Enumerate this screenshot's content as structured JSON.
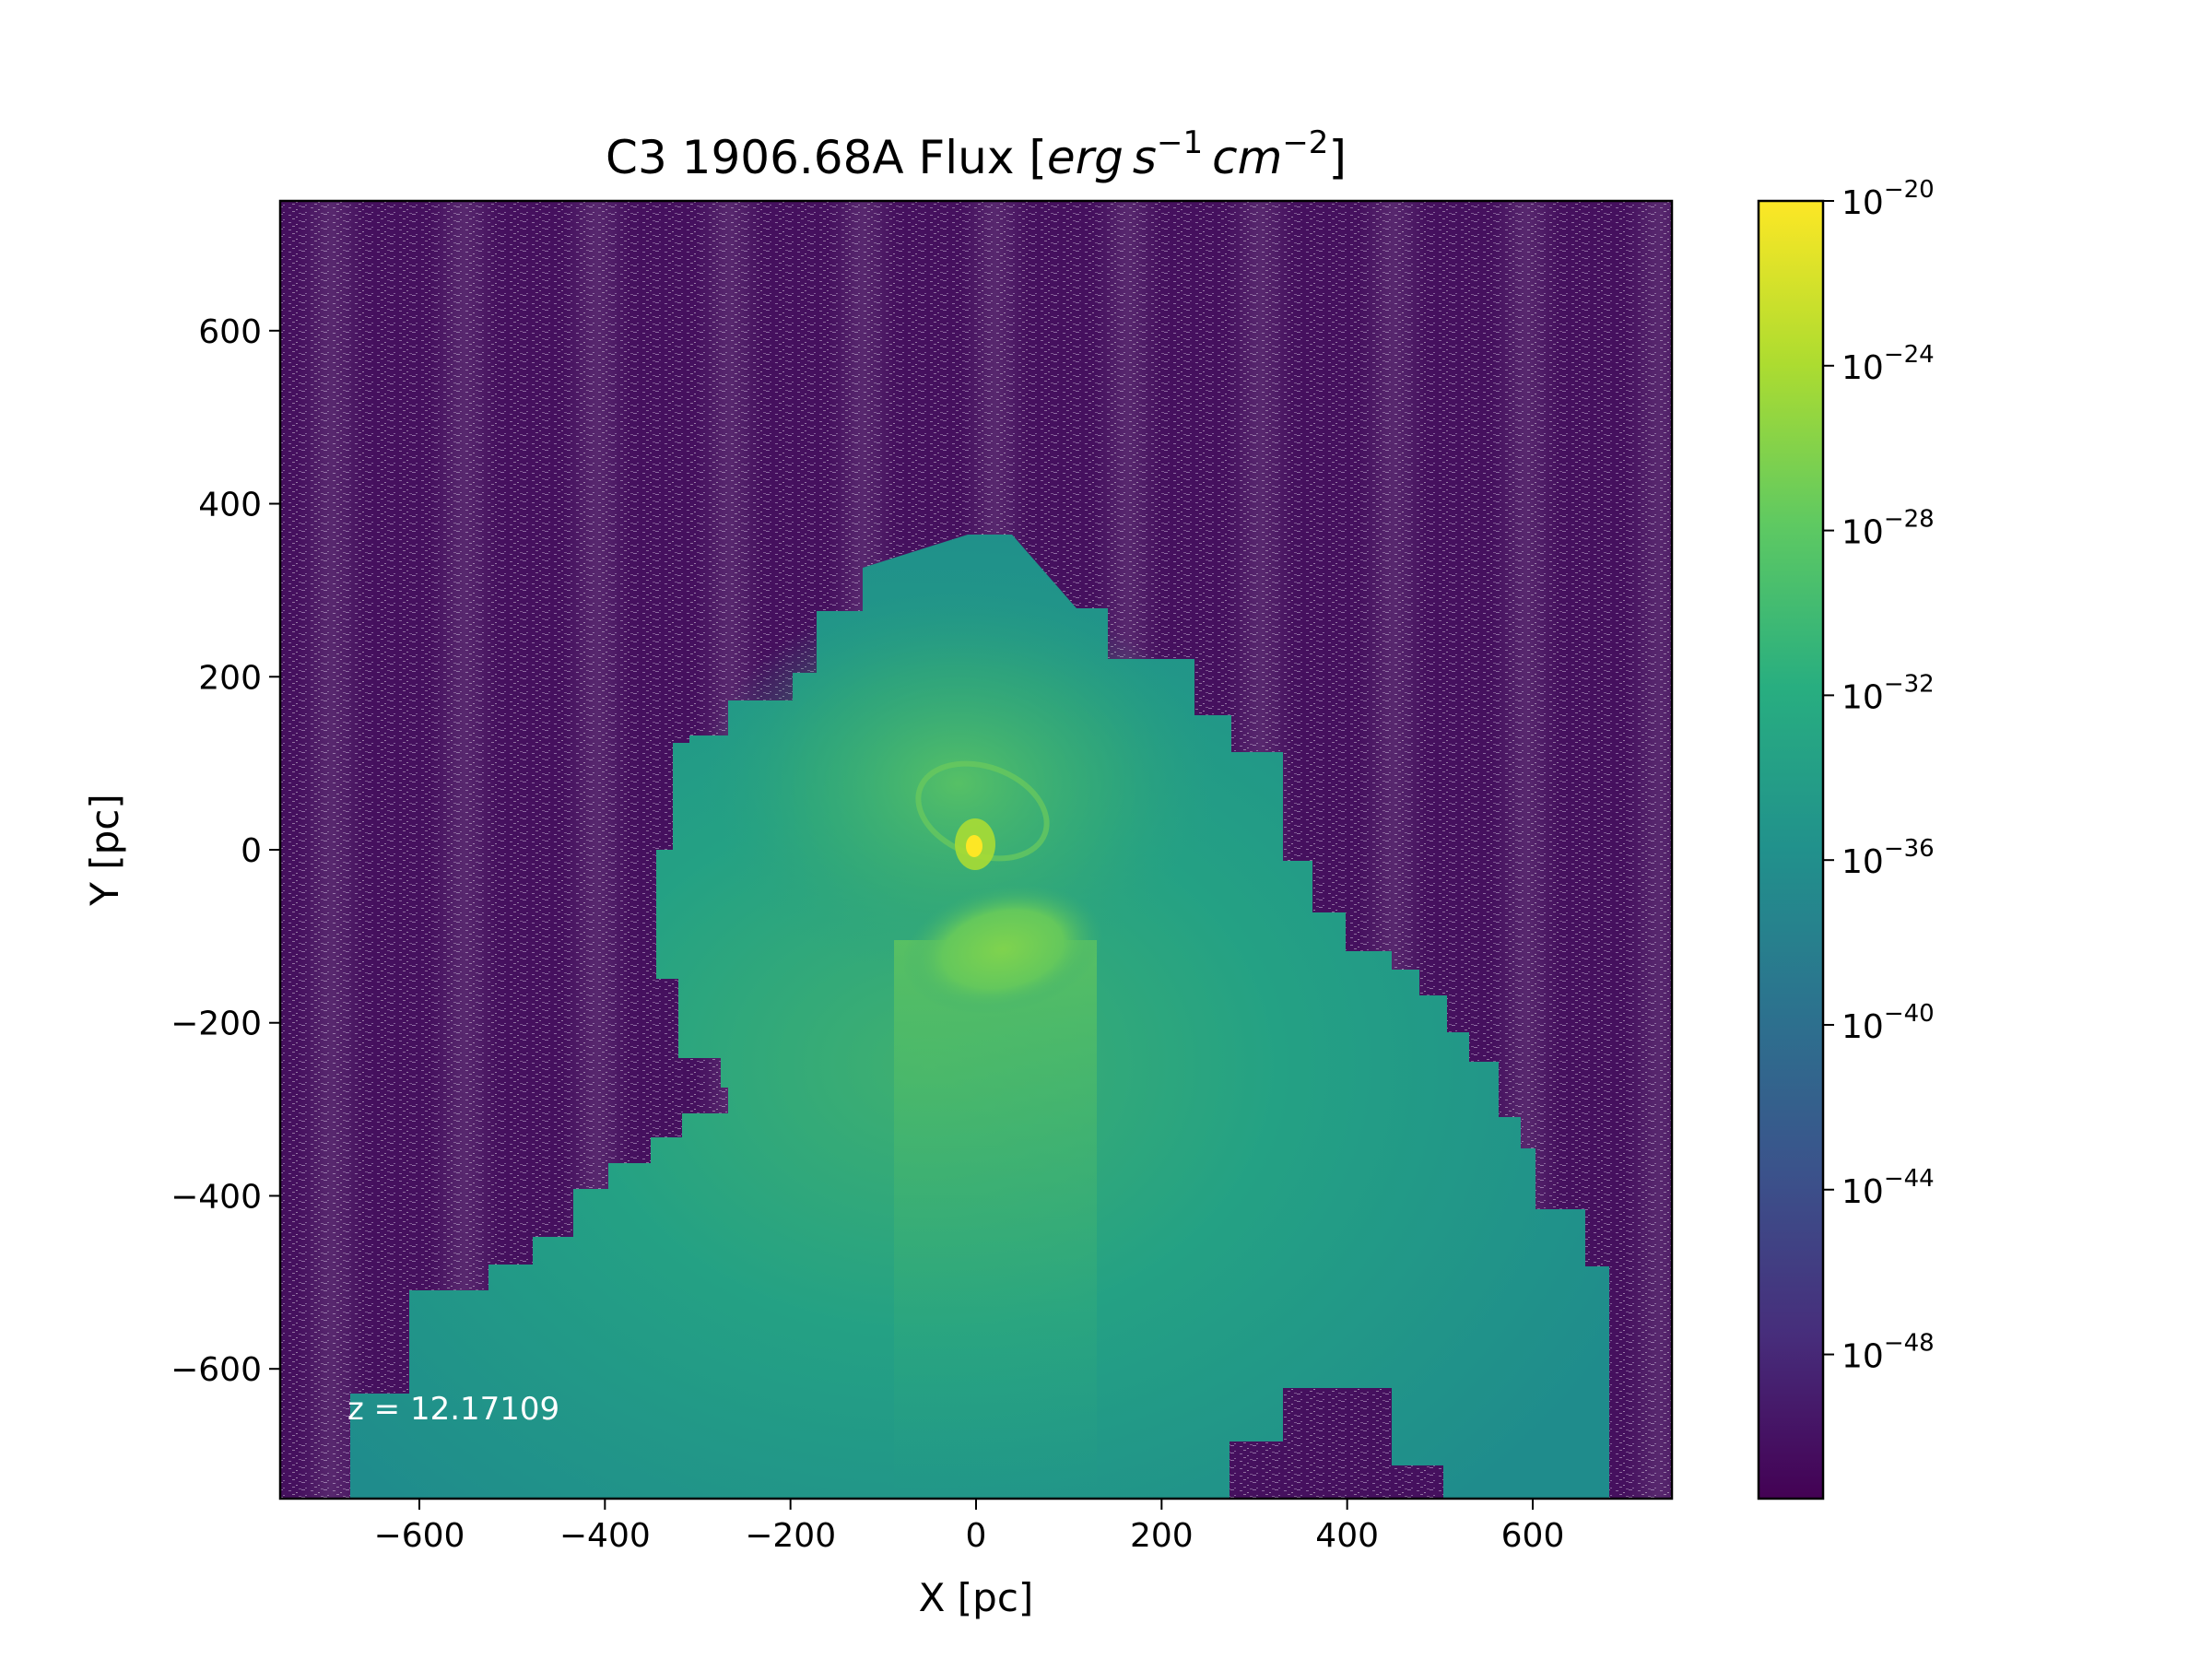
{
  "chart_data": {
    "type": "heatmap",
    "title": {
      "prefix": "C3 1906.68A Flux [",
      "unit_erg": "erg",
      "unit_s": "s",
      "unit_s_exp": "−1",
      "unit_cm": "cm",
      "unit_cm_exp": "−2",
      "suffix": "]"
    },
    "xlabel": "X [pc]",
    "ylabel": "Y [pc]",
    "xlim": [
      -750,
      750
    ],
    "ylim": [
      -750,
      750
    ],
    "x_ticks": [
      -600,
      -400,
      -200,
      0,
      200,
      400,
      600
    ],
    "y_ticks": [
      -600,
      -400,
      -200,
      0,
      200,
      400,
      600
    ],
    "x_tick_labels": [
      "−600",
      "−400",
      "−200",
      "0",
      "200",
      "400",
      "600"
    ],
    "y_tick_labels": [
      "−600",
      "−400",
      "−200",
      "0",
      "200",
      "400",
      "600"
    ],
    "annotation": "z = 12.17109",
    "colorbar": {
      "scale": "log",
      "range_exponents": [
        -51.5,
        -20
      ],
      "ticks": [
        {
          "exponent": -20,
          "base": "10",
          "exp_label": "−20"
        },
        {
          "exponent": -24,
          "base": "10",
          "exp_label": "−24"
        },
        {
          "exponent": -28,
          "base": "10",
          "exp_label": "−28"
        },
        {
          "exponent": -32,
          "base": "10",
          "exp_label": "−32"
        },
        {
          "exponent": -36,
          "base": "10",
          "exp_label": "−36"
        },
        {
          "exponent": -40,
          "base": "10",
          "exp_label": "−40"
        },
        {
          "exponent": -44,
          "base": "10",
          "exp_label": "−44"
        },
        {
          "exponent": -48,
          "base": "10",
          "exp_label": "−48"
        }
      ],
      "colormap": [
        "#440154",
        "#472d7b",
        "#3b528b",
        "#2c728e",
        "#21918c",
        "#28ae80",
        "#5ec962",
        "#addc30",
        "#fde725"
      ]
    },
    "colors": {
      "background_noise": "#45105e",
      "noise_speckle": "#ffffff",
      "gas_outer": "#1f8f8b",
      "gas_mid": "#23a083",
      "gas_inner": "#4cba6a",
      "lobe": "#6ccb5b",
      "core": "#fde725"
    }
  }
}
